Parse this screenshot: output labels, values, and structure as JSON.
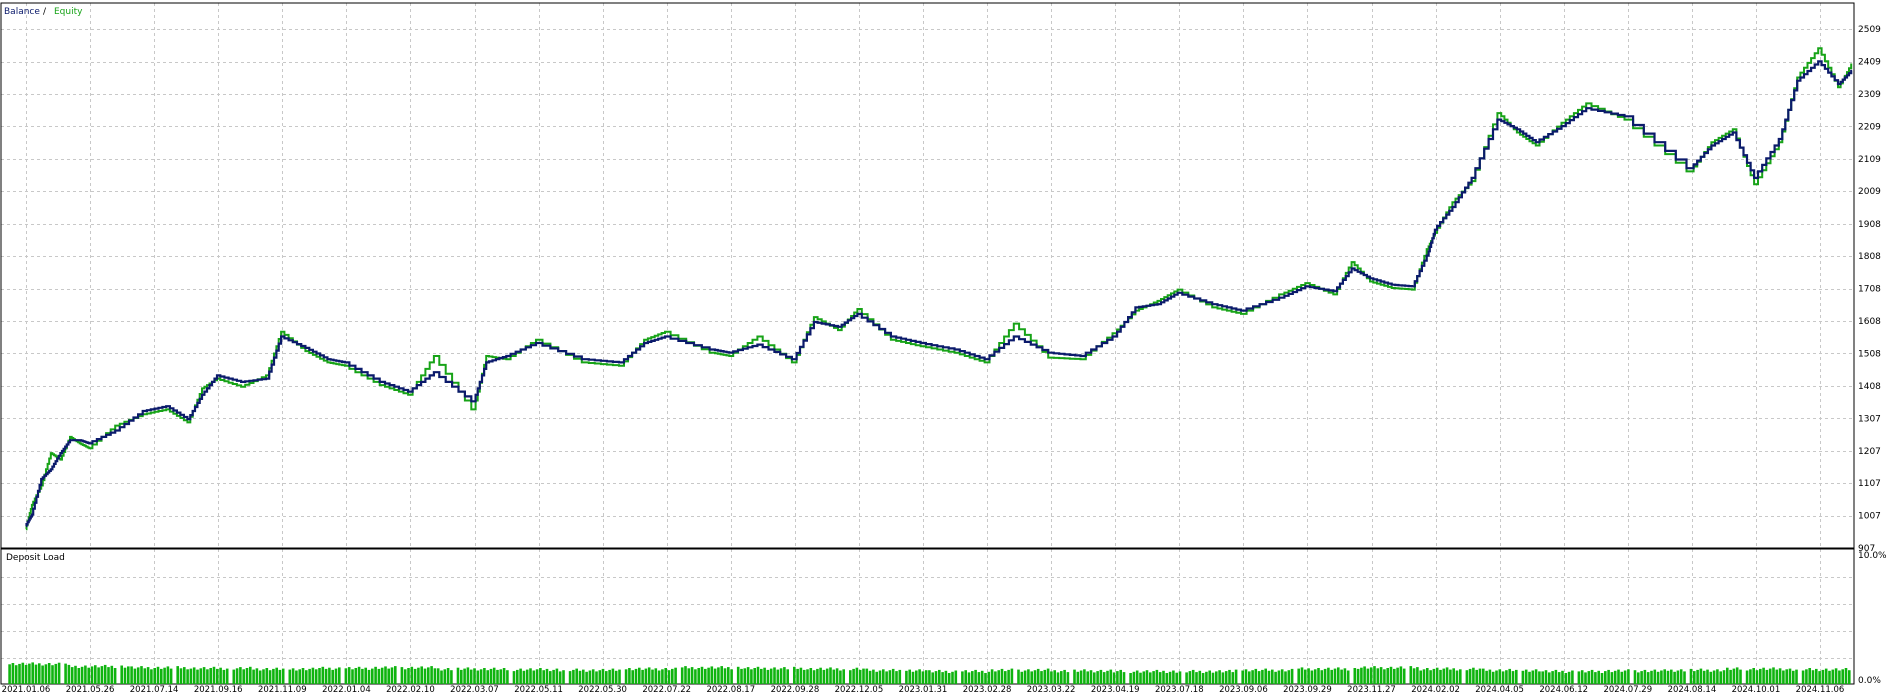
{
  "legend": {
    "balance_label": "Balance",
    "separator": " / ",
    "equity_label": "Equity"
  },
  "colors": {
    "balance": "#0b1a6b",
    "equity": "#17a317",
    "grid": "#c8c8c8",
    "frame": "#000000",
    "deposit_bars": "#0fb40f",
    "label_text": "#000000"
  },
  "chart_data": [
    {
      "type": "line",
      "series": [
        {
          "name": "Balance",
          "points": [
            [
              "2021.01.06",
              975
            ],
            [
              "2021.01.20",
              1010
            ],
            [
              "2021.02.10",
              1120
            ],
            [
              "2021.03.03",
              1150
            ],
            [
              "2021.03.24",
              1200
            ],
            [
              "2021.04.14",
              1240
            ],
            [
              "2021.05.05",
              1240
            ],
            [
              "2021.05.26",
              1230
            ],
            [
              "2021.06.16",
              1270
            ],
            [
              "2021.07.07",
              1330
            ],
            [
              "2021.07.28",
              1345
            ],
            [
              "2021.08.18",
              1305
            ],
            [
              "2021.09.01",
              1380
            ],
            [
              "2021.09.16",
              1440
            ],
            [
              "2021.10.07",
              1420
            ],
            [
              "2021.10.28",
              1430
            ],
            [
              "2021.11.09",
              1560
            ],
            [
              "2021.12.01",
              1525
            ],
            [
              "2021.12.20",
              1490
            ],
            [
              "2022.01.04",
              1480
            ],
            [
              "2022.01.25",
              1420
            ],
            [
              "2022.02.10",
              1390
            ],
            [
              "2022.02.20",
              1450
            ],
            [
              "2022.03.07",
              1360
            ],
            [
              "2022.03.20",
              1480
            ],
            [
              "2022.04.10",
              1500
            ],
            [
              "2022.05.11",
              1540
            ],
            [
              "2022.05.25",
              1490
            ],
            [
              "2022.06.15",
              1480
            ],
            [
              "2022.07.05",
              1540
            ],
            [
              "2022.07.22",
              1560
            ],
            [
              "2022.08.10",
              1520
            ],
            [
              "2022.08.17",
              1510
            ],
            [
              "2022.09.05",
              1535
            ],
            [
              "2022.09.28",
              1490
            ],
            [
              "2022.10.20",
              1605
            ],
            [
              "2022.11.15",
              1590
            ],
            [
              "2022.12.05",
              1630
            ],
            [
              "2023.01.05",
              1560
            ],
            [
              "2023.01.31",
              1540
            ],
            [
              "2023.02.15",
              1520
            ],
            [
              "2023.02.28",
              1490
            ],
            [
              "2023.03.10",
              1560
            ],
            [
              "2023.03.22",
              1510
            ],
            [
              "2023.04.05",
              1500
            ],
            [
              "2023.04.19",
              1560
            ],
            [
              "2023.05.20",
              1650
            ],
            [
              "2023.06.20",
              1660
            ],
            [
              "2023.07.18",
              1695
            ],
            [
              "2023.08.15",
              1660
            ],
            [
              "2023.09.06",
              1640
            ],
            [
              "2023.09.20",
              1680
            ],
            [
              "2023.09.29",
              1715
            ],
            [
              "2023.10.25",
              1700
            ],
            [
              "2023.11.10",
              1770
            ],
            [
              "2023.11.27",
              1740
            ],
            [
              "2023.12.20",
              1720
            ],
            [
              "2024.01.10",
              1715
            ],
            [
              "2024.01.25",
              1810
            ],
            [
              "2024.02.02",
              1890
            ],
            [
              "2024.02.20",
              1960
            ],
            [
              "2024.03.10",
              2050
            ],
            [
              "2024.04.05",
              2230
            ],
            [
              "2024.04.25",
              2200
            ],
            [
              "2024.05.15",
              2160
            ],
            [
              "2024.06.12",
              2210
            ],
            [
              "2024.06.30",
              2265
            ],
            [
              "2024.07.29",
              2240
            ],
            [
              "2024.08.14",
              2080
            ],
            [
              "2024.08.30",
              2150
            ],
            [
              "2024.09.15",
              2190
            ],
            [
              "2024.10.01",
              2050
            ],
            [
              "2024.10.15",
              2170
            ],
            [
              "2024.10.25",
              2350
            ],
            [
              "2024.11.06",
              2410
            ],
            [
              "2024.11.20",
              2340
            ],
            [
              "2024.11.29",
              2380
            ]
          ]
        },
        {
          "name": "Equity",
          "points": [
            [
              "2021.01.06",
              965
            ],
            [
              "2021.01.20",
              1040
            ],
            [
              "2021.02.10",
              1100
            ],
            [
              "2021.03.03",
              1200
            ],
            [
              "2021.03.24",
              1180
            ],
            [
              "2021.04.14",
              1250
            ],
            [
              "2021.05.05",
              1230
            ],
            [
              "2021.05.26",
              1215
            ],
            [
              "2021.06.16",
              1285
            ],
            [
              "2021.07.07",
              1320
            ],
            [
              "2021.07.28",
              1335
            ],
            [
              "2021.08.18",
              1295
            ],
            [
              "2021.09.01",
              1400
            ],
            [
              "2021.09.16",
              1430
            ],
            [
              "2021.10.07",
              1405
            ],
            [
              "2021.10.28",
              1440
            ],
            [
              "2021.11.09",
              1575
            ],
            [
              "2021.12.01",
              1515
            ],
            [
              "2021.12.20",
              1480
            ],
            [
              "2022.01.04",
              1470
            ],
            [
              "2022.01.25",
              1410
            ],
            [
              "2022.02.10",
              1380
            ],
            [
              "2022.02.20",
              1500
            ],
            [
              "2022.03.07",
              1335
            ],
            [
              "2022.03.20",
              1500
            ],
            [
              "2022.04.10",
              1490
            ],
            [
              "2022.05.11",
              1550
            ],
            [
              "2022.05.25",
              1480
            ],
            [
              "2022.06.15",
              1470
            ],
            [
              "2022.07.05",
              1550
            ],
            [
              "2022.07.22",
              1575
            ],
            [
              "2022.08.10",
              1510
            ],
            [
              "2022.08.17",
              1500
            ],
            [
              "2022.09.05",
              1560
            ],
            [
              "2022.09.28",
              1480
            ],
            [
              "2022.10.20",
              1620
            ],
            [
              "2022.11.15",
              1580
            ],
            [
              "2022.12.05",
              1645
            ],
            [
              "2023.01.05",
              1550
            ],
            [
              "2023.01.31",
              1530
            ],
            [
              "2023.02.15",
              1510
            ],
            [
              "2023.02.28",
              1480
            ],
            [
              "2023.03.10",
              1600
            ],
            [
              "2023.03.22",
              1495
            ],
            [
              "2023.04.05",
              1490
            ],
            [
              "2023.04.19",
              1570
            ],
            [
              "2023.05.20",
              1640
            ],
            [
              "2023.06.20",
              1670
            ],
            [
              "2023.07.18",
              1705
            ],
            [
              "2023.08.15",
              1650
            ],
            [
              "2023.09.06",
              1630
            ],
            [
              "2023.09.20",
              1690
            ],
            [
              "2023.09.29",
              1725
            ],
            [
              "2023.10.25",
              1690
            ],
            [
              "2023.11.10",
              1790
            ],
            [
              "2023.11.27",
              1730
            ],
            [
              "2023.12.20",
              1710
            ],
            [
              "2024.01.10",
              1705
            ],
            [
              "2024.01.25",
              1830
            ],
            [
              "2024.02.02",
              1880
            ],
            [
              "2024.02.20",
              1975
            ],
            [
              "2024.03.10",
              2040
            ],
            [
              "2024.04.05",
              2250
            ],
            [
              "2024.04.25",
              2190
            ],
            [
              "2024.05.15",
              2150
            ],
            [
              "2024.06.12",
              2220
            ],
            [
              "2024.06.30",
              2280
            ],
            [
              "2024.07.29",
              2230
            ],
            [
              "2024.08.14",
              2070
            ],
            [
              "2024.08.30",
              2160
            ],
            [
              "2024.09.15",
              2200
            ],
            [
              "2024.10.01",
              2030
            ],
            [
              "2024.10.15",
              2160
            ],
            [
              "2024.10.25",
              2360
            ],
            [
              "2024.11.06",
              2450
            ],
            [
              "2024.11.20",
              2330
            ],
            [
              "2024.11.29",
              2400
            ]
          ]
        }
      ],
      "x_labels": [
        "2021.01.06",
        "2021.05.26",
        "2021.07.14",
        "2021.09.16",
        "2021.11.09",
        "2022.01.04",
        "2022.02.10",
        "2022.03.07",
        "2022.05.11",
        "2022.05.30",
        "2022.07.22",
        "2022.08.17",
        "2022.09.28",
        "2022.12.05",
        "2023.01.31",
        "2023.02.28",
        "2023.03.22",
        "2023.04.19",
        "2023.07.18",
        "2023.09.06",
        "2023.09.29",
        "2023.11.27",
        "2024.02.02",
        "2024.04.05",
        "2024.06.12",
        "2024.07.29",
        "2024.08.14",
        "2024.10.01",
        "2024.11.06"
      ],
      "y_ticks": [
        907,
        1007,
        1107,
        1207,
        1307,
        1408,
        1508,
        1608,
        1708,
        1808,
        1908,
        2009,
        2109,
        2209,
        2309,
        2409,
        2509
      ],
      "ylim": [
        907,
        2590
      ],
      "grid": true,
      "legend_position": "top-left"
    },
    {
      "type": "bar",
      "title": "Deposit Load",
      "y_ticks": [
        "10.0%",
        "0.0%"
      ],
      "ylim": [
        0,
        10
      ],
      "values": [
        1.6,
        1.4,
        1.3,
        1.25,
        1.2,
        1.25,
        1.3,
        1.2,
        1.15,
        1.1,
        1.2,
        1.3,
        1.25,
        1.2,
        1.1,
        1.0,
        1.1,
        1.05,
        1.0,
        1.0,
        1.1,
        1.2,
        1.3,
        1.2,
        1.1,
        1.0,
        1.05,
        1.1,
        1.2,
        1.15
      ],
      "grid": true
    }
  ]
}
